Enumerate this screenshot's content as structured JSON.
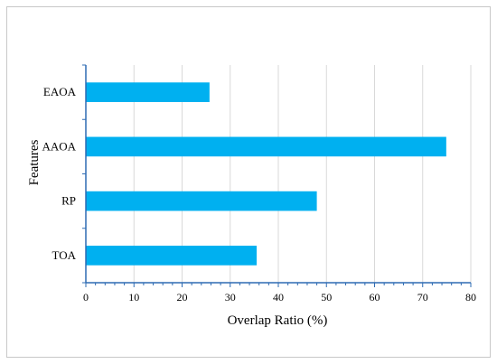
{
  "chart_data": {
    "type": "bar",
    "orientation": "horizontal",
    "categories": [
      "EAOA",
      "AAOA",
      "RP",
      "TOA"
    ],
    "values": [
      25.7,
      74.9,
      48,
      35.5
    ],
    "xlabel": "Overlap Ratio (%)",
    "ylabel": "Features",
    "xlim": [
      0,
      80
    ],
    "xticks": [
      "0",
      "10",
      "20",
      "30",
      "40",
      "50",
      "60",
      "70",
      "80"
    ],
    "grid": "vertical",
    "legend": "none",
    "colors": {
      "bar": "#00b0f0",
      "axis": "#2e6bb3",
      "grid": "#d9d9d9"
    }
  }
}
